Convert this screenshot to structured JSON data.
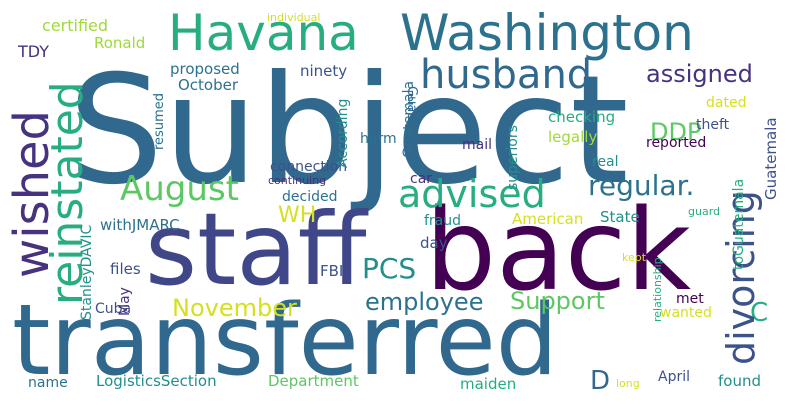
{
  "colors": {
    "dark_purple": "#440154",
    "purple": "#46327e",
    "indigo": "#3b528b",
    "blue": "#31688e",
    "steel": "#2c728e",
    "teal": "#21908c",
    "sea": "#27ad81",
    "green": "#5cc863",
    "lime": "#a0da39",
    "yellow": "#d6e021"
  },
  "words": {
    "subject": "Subject",
    "staff": "staff",
    "back": "back",
    "transferred": "transferred",
    "havana": "Havana",
    "washington": "Washington",
    "husband": "husband",
    "reinstated": "reinstated",
    "wished": "wished",
    "advised": "advised",
    "august": "August",
    "divorcing": "divorcing",
    "regular": "regular.",
    "assigned": "assigned",
    "employee": "employee",
    "support": "Support",
    "november": "November",
    "pcs": "PCS",
    "ddp": "DDP",
    "wh": "WH",
    "c": "C",
    "d": "D",
    "certified": "certified",
    "ronald": "Ronald",
    "tdy": "TDY",
    "proposed": "proposed",
    "october": "October",
    "ninety": "ninety",
    "resumed": "resumed",
    "according": "According",
    "harm": "harm",
    "guatemala": "Guatemala",
    "guatemala2": "Guatemala",
    "checking": "checking",
    "legally": "legally",
    "theft": "theft",
    "dated": "dated",
    "reported": "reported",
    "mail": "mail",
    "real": "real",
    "superiors": "superiors",
    "connection": "connection",
    "car": "car",
    "fraud": "fraud",
    "american": "American",
    "state": "State",
    "stanleydavic": "StanleyDAVIC",
    "withjmarc": "withJMARC",
    "decided": "decided",
    "day": "day",
    "files": "files",
    "fbi": "FBI",
    "cuba": "Cuba",
    "may": "May",
    "kept": "kept",
    "continuing": "continuing",
    "guard": "guard",
    "relationship": "relationship",
    "toguatemala": "toGuatemala",
    "met": "met",
    "wanted": "wanted",
    "name": "name",
    "logisticssection": "LogisticsSection",
    "department": "Department",
    "maiden": "maiden",
    "april": "April",
    "long": "long",
    "found": "found",
    "individual": "individual"
  }
}
